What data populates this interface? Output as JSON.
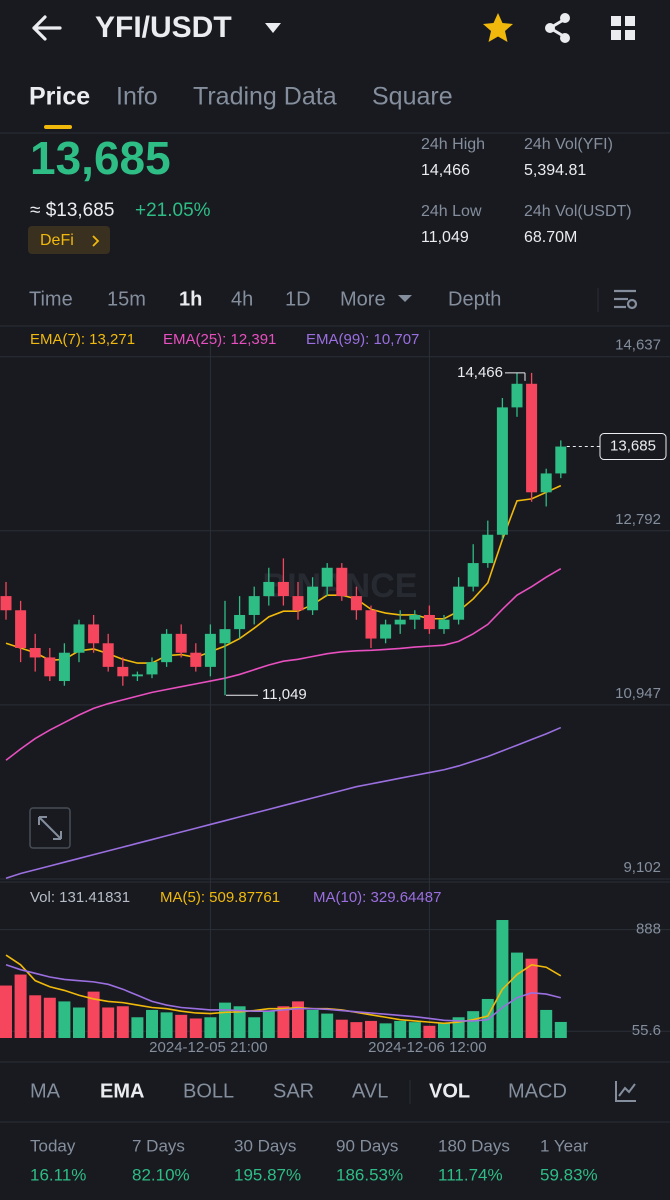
{
  "header": {
    "title": "YFI/USDT"
  },
  "tabs": [
    "Price",
    "Info",
    "Trading Data",
    "Square"
  ],
  "price": {
    "last": "13,685",
    "usd": "≈ $13,685",
    "change": "+21.05%",
    "tag": "DeFi"
  },
  "stats": [
    {
      "label": "24h High",
      "value": "14,466"
    },
    {
      "label": "24h Vol(YFI)",
      "value": "5,394.81"
    },
    {
      "label": "24h Low",
      "value": "11,049"
    },
    {
      "label": "24h Vol(USDT)",
      "value": "68.70M"
    }
  ],
  "intervals": [
    "Time",
    "15m",
    "1h",
    "4h",
    "1D",
    "More",
    "Depth"
  ],
  "chart_data": [
    {
      "type": "candlestick",
      "watermark": "BINANCE",
      "open": [
        12100,
        11950,
        11550,
        11450,
        11200,
        11500,
        11800,
        11600,
        11350,
        11250,
        11270,
        11400,
        11700,
        11500,
        11350,
        11600,
        11750,
        11900,
        12100,
        12250,
        12100,
        11950,
        12200,
        12400,
        12100,
        11950,
        11650,
        11800,
        11850,
        11900,
        11750,
        11850,
        12200,
        12450,
        12750,
        14100,
        14350,
        13200,
        13400
      ],
      "high": [
        12250,
        12050,
        11700,
        11550,
        11600,
        11850,
        11900,
        11700,
        11450,
        11300,
        11450,
        11750,
        11800,
        11600,
        11800,
        12050,
        12100,
        12200,
        12400,
        12500,
        12250,
        12300,
        12450,
        12450,
        12200,
        12000,
        11850,
        11950,
        11950,
        12000,
        11900,
        12300,
        12650,
        12900,
        14200,
        14466,
        14466,
        13450,
        13750
      ],
      "low": [
        11850,
        11400,
        11300,
        11200,
        11150,
        11400,
        11500,
        11300,
        11150,
        11200,
        11230,
        11350,
        11450,
        11300,
        11250,
        11049,
        11650,
        11800,
        12000,
        12000,
        11850,
        11900,
        12100,
        12050,
        11850,
        11550,
        11600,
        11700,
        11750,
        11700,
        11700,
        11800,
        12150,
        12400,
        12700,
        14000,
        13100,
        13050,
        13350
      ],
      "close": [
        11950,
        11550,
        11450,
        11250,
        11500,
        11800,
        11600,
        11350,
        11250,
        11270,
        11400,
        11700,
        11500,
        11350,
        11700,
        11750,
        11900,
        12100,
        12250,
        12100,
        11950,
        12200,
        12400,
        12100,
        11950,
        11650,
        11800,
        11850,
        11900,
        11750,
        11850,
        12200,
        12450,
        12750,
        14100,
        14350,
        13200,
        13400,
        13685
      ],
      "series": [
        {
          "name": "EMA(7): 13,271",
          "color": "#f0b90b",
          "values": [
            11600,
            11550,
            11500,
            11420,
            11430,
            11520,
            11540,
            11490,
            11430,
            11390,
            11390,
            11470,
            11480,
            11450,
            11510,
            11570,
            11650,
            11760,
            11880,
            11940,
            11940,
            12010,
            12110,
            12110,
            12070,
            11960,
            11920,
            11900,
            11900,
            11860,
            11860,
            11940,
            12070,
            12240,
            12700,
            13110,
            13130,
            13200,
            13271
          ]
        },
        {
          "name": "EMA(25): 12,391",
          "color": "#e84fbf",
          "values": [
            10360,
            10480,
            10590,
            10680,
            10760,
            10840,
            10910,
            10960,
            11000,
            11040,
            11080,
            11110,
            11140,
            11170,
            11200,
            11230,
            11270,
            11320,
            11370,
            11410,
            11430,
            11460,
            11490,
            11510,
            11520,
            11525,
            11535,
            11545,
            11560,
            11570,
            11580,
            11620,
            11700,
            11800,
            11960,
            12110,
            12200,
            12300,
            12391
          ]
        },
        {
          "name": "EMA(99): 10,707",
          "color": "#9b6fe0",
          "values": [
            9110,
            9160,
            9200,
            9240,
            9280,
            9320,
            9360,
            9400,
            9440,
            9480,
            9520,
            9560,
            9600,
            9640,
            9680,
            9720,
            9760,
            9800,
            9840,
            9880,
            9920,
            9960,
            10000,
            10040,
            10080,
            10110,
            10140,
            10170,
            10200,
            10230,
            10260,
            10300,
            10350,
            10400,
            10460,
            10520,
            10580,
            10640,
            10707
          ]
        }
      ],
      "annotations": [
        {
          "label": "14,466",
          "value": 14466
        },
        {
          "label": "11,049",
          "value": 11049
        },
        {
          "label": "13,685",
          "value": 13685
        }
      ],
      "ylim": [
        9102,
        14920
      ],
      "yticks": [
        {
          "value": 14637,
          "label": "14,637"
        },
        {
          "value": 12792,
          "label": "12,792"
        },
        {
          "value": 10947,
          "label": "10,947"
        },
        {
          "value": 9102,
          "label": "9,102"
        }
      ],
      "grid": true
    },
    {
      "type": "bar",
      "title": "Vol: 131.41831",
      "categories": [
        null,
        null,
        null,
        null,
        null,
        null,
        null,
        null,
        null,
        null,
        null,
        null,
        null,
        null,
        "2024-12-05 21:00",
        null,
        null,
        null,
        null,
        null,
        null,
        null,
        null,
        null,
        null,
        null,
        null,
        null,
        null,
        "2024-12-06 12:00",
        null,
        null,
        null,
        null,
        null,
        null,
        null,
        null,
        null
      ],
      "values": [
        430,
        520,
        350,
        330,
        300,
        250,
        380,
        250,
        260,
        170,
        230,
        210,
        190,
        160,
        170,
        290,
        260,
        170,
        220,
        260,
        300,
        230,
        200,
        150,
        130,
        140,
        120,
        140,
        130,
        100,
        120,
        170,
        220,
        320,
        967,
        700,
        650,
        230,
        131.41831
      ],
      "series": [
        {
          "name": "MA(5): 509.87761",
          "color": "#f0b90b",
          "values": [
            680,
            600,
            470,
            420,
            390,
            350,
            320,
            300,
            290,
            270,
            250,
            240,
            220,
            205,
            200,
            210,
            215,
            225,
            240,
            240,
            250,
            240,
            240,
            230,
            210,
            190,
            170,
            150,
            140,
            130,
            120,
            130,
            150,
            180,
            400,
            520,
            600,
            580,
            509.87761
          ]
        },
        {
          "name": "MA(10): 329.64487",
          "color": "#9b6fe0",
          "values": [
            600,
            560,
            530,
            500,
            480,
            470,
            460,
            440,
            400,
            350,
            300,
            270,
            250,
            240,
            230,
            230,
            225,
            220,
            220,
            230,
            240,
            240,
            235,
            225,
            215,
            205,
            195,
            185,
            175,
            160,
            145,
            140,
            140,
            150,
            250,
            330,
            370,
            360,
            329.64487
          ]
        }
      ],
      "ylim": [
        0,
        1090
      ],
      "yticks": [
        888,
        55.6
      ]
    }
  ],
  "indicators": [
    "MA",
    "EMA",
    "BOLL",
    "SAR",
    "AVL",
    "VOL",
    "MACD"
  ],
  "performance": [
    {
      "period": "Today",
      "value": "16.11%"
    },
    {
      "period": "7 Days",
      "value": "82.10%"
    },
    {
      "period": "30 Days",
      "value": "195.87%"
    },
    {
      "period": "90 Days",
      "value": "186.53%"
    },
    {
      "period": "180 Days",
      "value": "111.74%"
    },
    {
      "period": "1 Year",
      "value": "59.83%"
    }
  ]
}
